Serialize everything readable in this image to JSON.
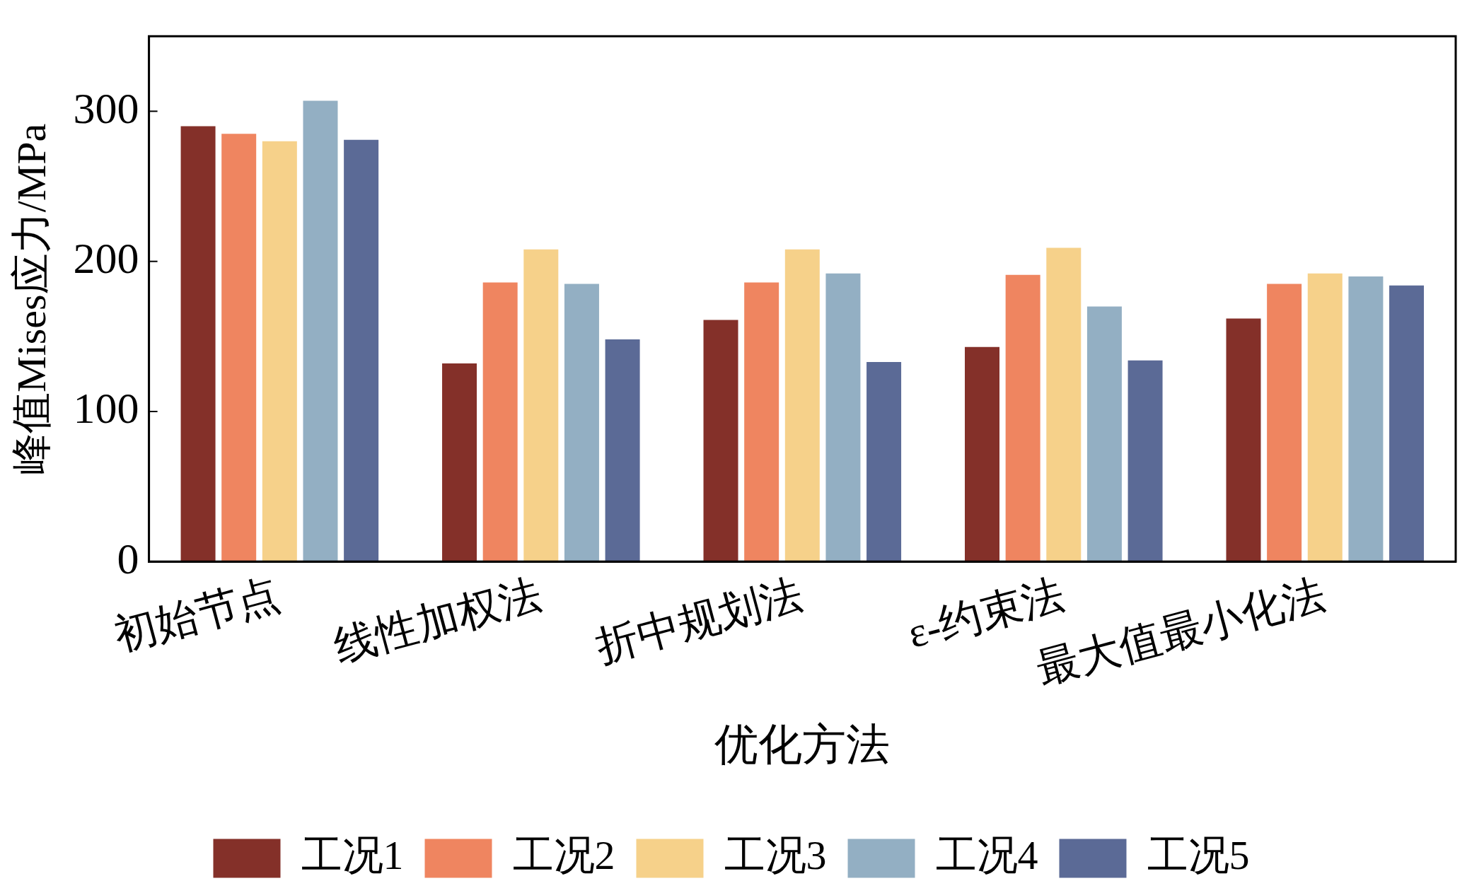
{
  "chart_data": {
    "type": "bar",
    "xlabel": "优化方法",
    "ylabel": "峰值Mises应力/MPa",
    "categories": [
      "初始节点",
      "线性加权法",
      "折中规划法",
      "ε-约束法",
      "最大值最小化法"
    ],
    "series": [
      {
        "name": "工况1",
        "color": "#843029",
        "values": [
          290,
          132,
          161,
          143,
          162
        ]
      },
      {
        "name": "工况2",
        "color": "#ef8560",
        "values": [
          285,
          186,
          186,
          191,
          185
        ]
      },
      {
        "name": "工况3",
        "color": "#f6d18a",
        "values": [
          280,
          208,
          208,
          209,
          192
        ]
      },
      {
        "name": "工况4",
        "color": "#93afc3",
        "values": [
          307,
          185,
          192,
          170,
          190
        ]
      },
      {
        "name": "工况5",
        "color": "#5b6a96",
        "values": [
          281,
          148,
          133,
          134,
          184
        ]
      }
    ],
    "ylim": [
      0,
      350
    ],
    "yticks": [
      0,
      100,
      200,
      300
    ],
    "legend": "bottom"
  }
}
